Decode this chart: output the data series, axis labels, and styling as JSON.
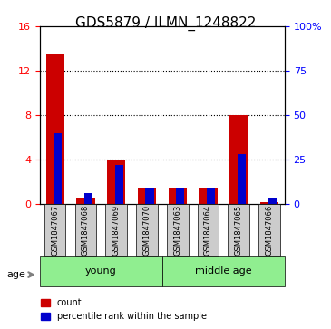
{
  "title": "GDS5879 / ILMN_1248822",
  "samples": [
    "GSM1847067",
    "GSM1847068",
    "GSM1847069",
    "GSM1847070",
    "GSM1847063",
    "GSM1847064",
    "GSM1847065",
    "GSM1847066"
  ],
  "red_values": [
    13.5,
    0.5,
    4.0,
    1.5,
    1.5,
    1.5,
    8.0,
    0.2
  ],
  "blue_values_pct": [
    40.0,
    6.0,
    22.0,
    9.0,
    9.0,
    9.0,
    28.0,
    3.0
  ],
  "ylim_left": [
    0,
    16
  ],
  "ylim_right": [
    0,
    100
  ],
  "left_ticks": [
    0,
    4,
    8,
    12,
    16
  ],
  "right_ticks": [
    0,
    25,
    50,
    75,
    100
  ],
  "grid_lines": [
    4,
    8,
    12
  ],
  "young_indices": [
    0,
    1,
    2,
    3
  ],
  "middle_age_indices": [
    4,
    5,
    6,
    7
  ],
  "young_label": "young",
  "middle_age_label": "middle age",
  "age_label": "age",
  "legend_red": "count",
  "legend_blue": "percentile rank within the sample",
  "bar_width": 0.6,
  "red_color": "#cc0000",
  "blue_color": "#0000cc",
  "young_color": "#90ee90",
  "middle_age_color": "#90ee90",
  "sample_box_color": "#cccccc",
  "background_color": "#ffffff",
  "title_fontsize": 11,
  "tick_fontsize": 8,
  "label_fontsize": 8
}
